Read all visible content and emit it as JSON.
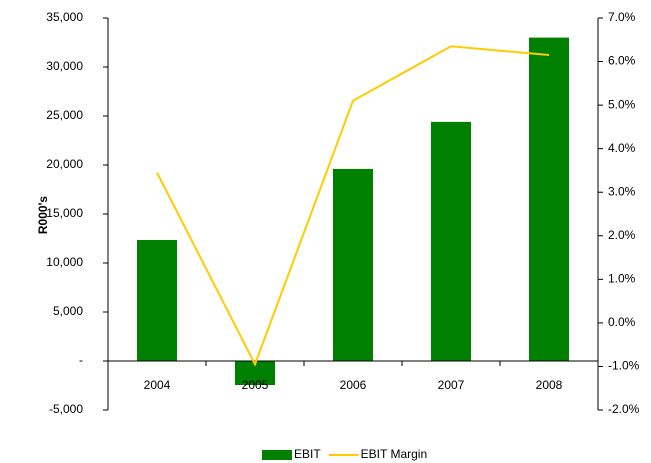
{
  "chart_data": {
    "type": "bar-line",
    "y_label": "R000's",
    "categories": [
      "2004",
      "2005",
      "2006",
      "2007",
      "2008"
    ],
    "series": [
      {
        "name": "EBIT",
        "type": "bar",
        "color": "#008000",
        "values": [
          12350,
          -2450,
          19600,
          24400,
          33000
        ]
      },
      {
        "name": "EBIT Margin",
        "type": "line",
        "color": "#ffcc00",
        "axis": "y2",
        "values": [
          3.45,
          -0.95,
          5.1,
          6.35,
          6.15
        ]
      }
    ],
    "ylim": [
      -5000,
      35000
    ],
    "yticks": [
      {
        "value": -5000,
        "label": "-5,000"
      },
      {
        "value": 0,
        "label": "-"
      },
      {
        "value": 5000,
        "label": "5,000"
      },
      {
        "value": 10000,
        "label": "10,000"
      },
      {
        "value": 15000,
        "label": "15,000"
      },
      {
        "value": 20000,
        "label": "20,000"
      },
      {
        "value": 25000,
        "label": "25,000"
      },
      {
        "value": 30000,
        "label": "30,000"
      },
      {
        "value": 35000,
        "label": "35,000"
      }
    ],
    "y2lim": [
      -2,
      7
    ],
    "y2ticks": [
      {
        "value": -2,
        "label": "-2.0%"
      },
      {
        "value": -1,
        "label": "-1.0%"
      },
      {
        "value": 0,
        "label": "0.0%"
      },
      {
        "value": 1,
        "label": "1.0%"
      },
      {
        "value": 2,
        "label": "2.0%"
      },
      {
        "value": 3,
        "label": "3.0%"
      },
      {
        "value": 4,
        "label": "4.0%"
      },
      {
        "value": 5,
        "label": "5.0%"
      },
      {
        "value": 6,
        "label": "6.0%"
      },
      {
        "value": 7,
        "label": "7.0%"
      }
    ],
    "legend": "bottom"
  }
}
